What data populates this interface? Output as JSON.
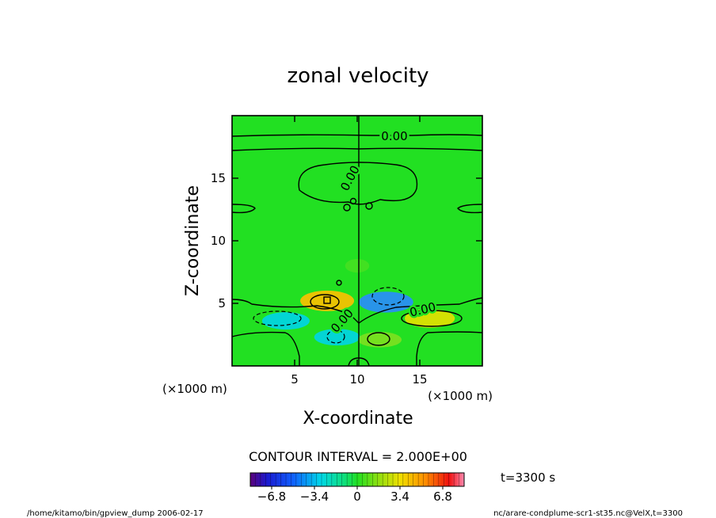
{
  "chart_data": {
    "type": "heatmap",
    "title": "zonal velocity",
    "xlabel": "X-coordinate",
    "ylabel": "Z-coordinate",
    "x_unit": "(×1000 m)",
    "y_unit": "(×1000 m)",
    "xlim": [
      0,
      20
    ],
    "ylim": [
      0,
      20
    ],
    "x_ticks": [
      "5",
      "10",
      "15"
    ],
    "y_ticks": [
      "5",
      "10",
      "15"
    ],
    "contour_interval_text": "CONTOUR INTERVAL = 2.000E+00",
    "contour_labels": [
      "0.00",
      "0.00",
      "0.00",
      "0.00"
    ],
    "colorbar": {
      "min": -8.5,
      "max": 8.5,
      "tick_labels": [
        "−6.8",
        "−3.4",
        "0",
        "3.4",
        "6.8"
      ],
      "tick_values": [
        -6.8,
        -3.4,
        0,
        3.4,
        6.8
      ]
    },
    "features": [
      {
        "x": 7.6,
        "z": 5.2,
        "value": 5.0
      },
      {
        "x": 15.8,
        "z": 3.8,
        "value": 3.8
      },
      {
        "x": 12.3,
        "z": 5.1,
        "value": -5.2
      },
      {
        "x": 4.3,
        "z": 3.6,
        "value": -3.0
      },
      {
        "x": 8.4,
        "z": 2.3,
        "value": -2.5
      },
      {
        "x": 11.8,
        "z": 2.1,
        "value": 1.8
      },
      {
        "x": 10.0,
        "z": 8.0,
        "value": 0.6
      }
    ],
    "colors": {
      "background_field": "#22e022",
      "positive": "#ffd700",
      "negative": "#00d4e8"
    }
  },
  "annotations": {
    "time": "t=3300 s",
    "footer_left": "/home/kitamo/bin/gpview_dump  2006-02-17",
    "footer_right": "nc/arare-condplume-scr1-st35.nc@VelX,t=3300"
  }
}
